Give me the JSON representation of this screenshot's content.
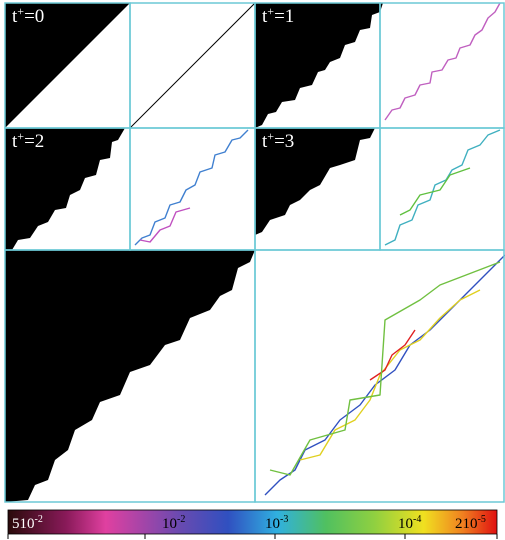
{
  "panels": [
    {
      "label": {
        "base": "t",
        "sup": "+",
        "rest": "=0"
      }
    },
    {
      "label": {
        "base": "t",
        "sup": "+",
        "rest": "=1"
      }
    },
    {
      "label": {
        "base": "t",
        "sup": "+",
        "rest": "=2"
      }
    },
    {
      "label": {
        "base": "t",
        "sup": "+",
        "rest": "=3"
      }
    }
  ],
  "colorbar": {
    "labels": [
      {
        "base": "510",
        "exp": "-2"
      },
      {
        "base": "10",
        "exp": "-2"
      },
      {
        "base": "10",
        "exp": "-3"
      },
      {
        "base": "10",
        "exp": "-4"
      },
      {
        "base": "210",
        "exp": "-5"
      }
    ]
  }
}
